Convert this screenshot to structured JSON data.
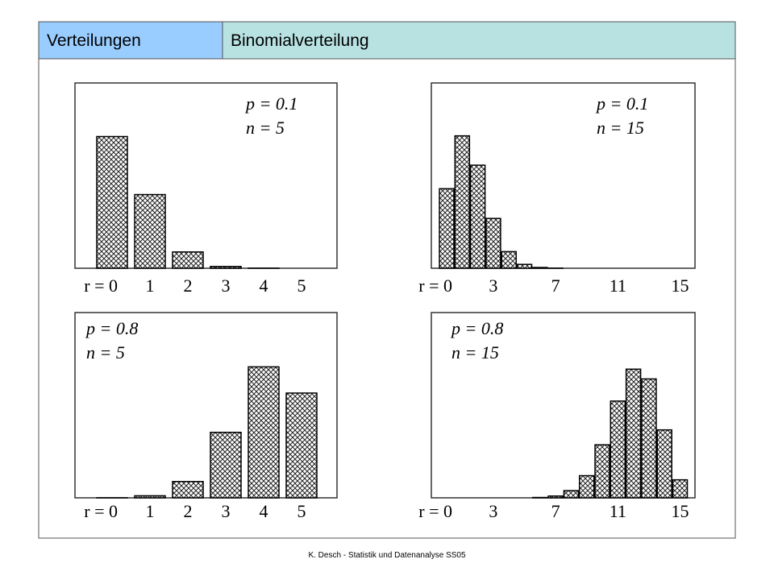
{
  "header": {
    "section": "Verteilungen",
    "title": "Binomialverteilung"
  },
  "footer": "K. Desch - Statistik und Datenanalyse SS05",
  "chart_data": [
    {
      "type": "bar",
      "annotations": [
        "p = 0.1",
        "n = 5"
      ],
      "color": "#000000",
      "categories": [
        "r = 0",
        "1",
        "2",
        "3",
        "4",
        "5"
      ],
      "values": [
        0.59,
        0.33,
        0.073,
        0.008,
        0.0005,
        0
      ],
      "ylim": [
        0,
        0.83
      ]
    },
    {
      "type": "bar",
      "annotations": [
        "p = 0.1",
        "n = 15"
      ],
      "color": "#000000",
      "categories": [
        "r = 0",
        null,
        null,
        "3",
        null,
        null,
        null,
        "7",
        null,
        null,
        null,
        "11",
        null,
        null,
        null,
        "15"
      ],
      "values": [
        0.206,
        0.343,
        0.267,
        0.129,
        0.043,
        0.01,
        0.002,
        0.0003,
        0,
        0,
        0,
        0,
        0,
        0,
        0,
        0
      ],
      "ylim": [
        0,
        0.48
      ]
    },
    {
      "type": "bar",
      "annotations": [
        "p = 0.8",
        "n = 5"
      ],
      "color": "#000000",
      "categories": [
        "r = 0",
        "1",
        "2",
        "3",
        "4",
        "5"
      ],
      "values": [
        0.0003,
        0.0064,
        0.051,
        0.205,
        0.41,
        0.328
      ],
      "ylim": [
        0,
        0.58
      ]
    },
    {
      "type": "bar",
      "annotations": [
        "p = 0.8",
        "n = 15"
      ],
      "color": "#000000",
      "categories": [
        "r = 0",
        null,
        null,
        "3",
        null,
        null,
        null,
        "7",
        null,
        null,
        null,
        "11",
        null,
        null,
        null,
        "15"
      ],
      "values": [
        0,
        0,
        0,
        0,
        0,
        0,
        0.0007,
        0.0035,
        0.014,
        0.043,
        0.103,
        0.188,
        0.25,
        0.231,
        0.132,
        0.035
      ],
      "ylim": [
        0,
        0.36
      ]
    }
  ]
}
